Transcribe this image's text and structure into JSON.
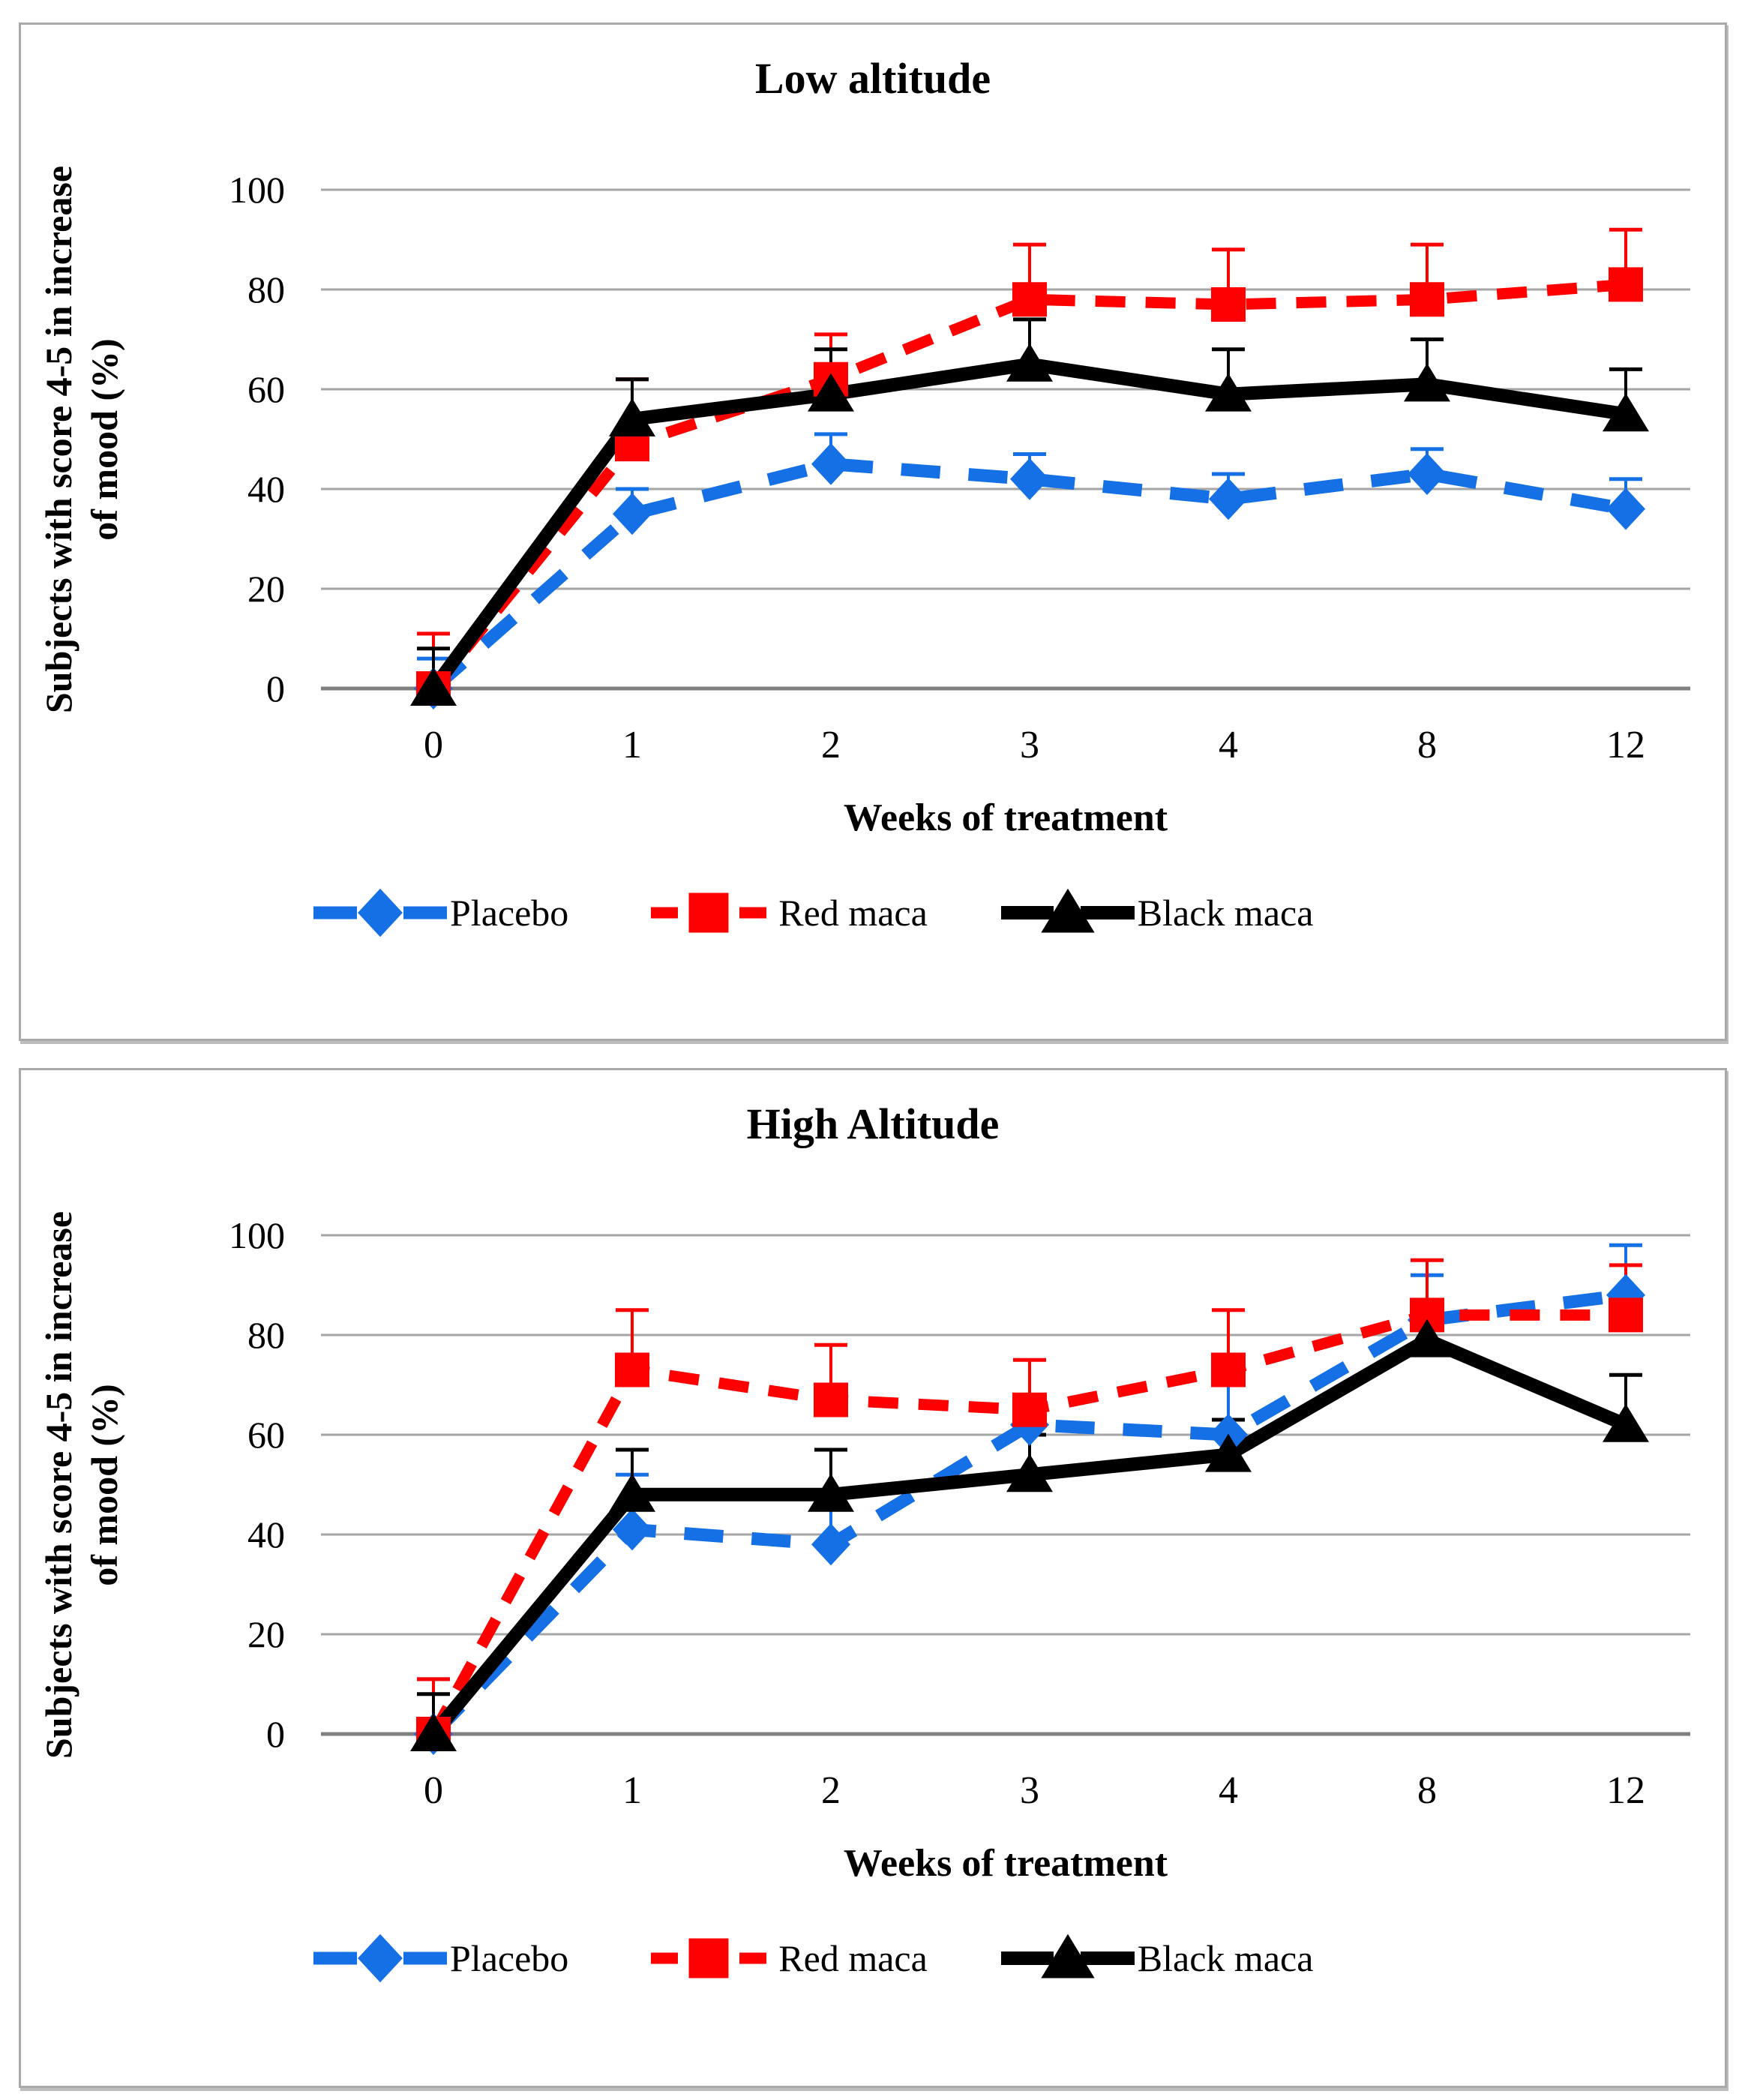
{
  "chart_data": [
    {
      "type": "line",
      "title": "Low altitude",
      "xlabel": "Weeks of treatment",
      "ylabel_lines": [
        "Subjects with score 4-5 in increase",
        "of mood (%)"
      ],
      "categories": [
        "0",
        "1",
        "2",
        "3",
        "4",
        "8",
        "12"
      ],
      "yticks": [
        0,
        20,
        40,
        60,
        80,
        100
      ],
      "ylim": [
        0,
        100
      ],
      "grid": true,
      "grid_color": "#a6a6a6",
      "axis_color": "#808080",
      "legend_position": "bottom",
      "series": [
        {
          "name": "Placebo",
          "color": "#1570e6",
          "line_style": "dashed",
          "marker": "diamond",
          "values": [
            0,
            35,
            45,
            42,
            38,
            43,
            36
          ],
          "err_up": [
            6,
            5,
            6,
            5,
            5,
            5,
            6
          ]
        },
        {
          "name": "Red maca",
          "color": "#fe0000",
          "line_style": "dashed",
          "marker": "square",
          "values": [
            0,
            49,
            62,
            78,
            77,
            78,
            81
          ],
          "err_up": [
            11,
            13,
            9,
            11,
            11,
            11,
            11
          ]
        },
        {
          "name": "Black maca",
          "color": "#000000",
          "line_style": "solid",
          "marker": "triangle",
          "values": [
            0,
            54,
            59,
            65,
            59,
            61,
            55
          ],
          "err_up": [
            8,
            8,
            9,
            9,
            9,
            9,
            9
          ]
        }
      ]
    },
    {
      "type": "line",
      "title": "High Altitude",
      "xlabel": "Weeks of treatment",
      "ylabel_lines": [
        "Subjects with score 4-5 in increase",
        "of mood (%)"
      ],
      "categories": [
        "0",
        "1",
        "2",
        "3",
        "4",
        "8",
        "12"
      ],
      "yticks": [
        0,
        20,
        40,
        60,
        80,
        100
      ],
      "ylim": [
        0,
        100
      ],
      "grid": true,
      "grid_color": "#a6a6a6",
      "axis_color": "#808080",
      "legend_position": "bottom",
      "series": [
        {
          "name": "Placebo",
          "color": "#1570e6",
          "line_style": "dashed",
          "marker": "diamond",
          "values": [
            0,
            41,
            38,
            62,
            60,
            83,
            88
          ],
          "err_up": [
            11,
            11,
            7,
            6,
            10,
            9,
            10
          ]
        },
        {
          "name": "Red maca",
          "color": "#fe0000",
          "line_style": "dashed",
          "marker": "square",
          "values": [
            0,
            73,
            67,
            65,
            73,
            84,
            84
          ],
          "err_up": [
            11,
            12,
            11,
            10,
            12,
            11,
            10
          ]
        },
        {
          "name": "Black maca",
          "color": "#000000",
          "line_style": "solid",
          "marker": "triangle",
          "values": [
            0,
            48,
            48,
            52,
            56,
            79,
            62
          ],
          "err_up": [
            8,
            9,
            9,
            8,
            7,
            6,
            10
          ]
        }
      ]
    }
  ]
}
